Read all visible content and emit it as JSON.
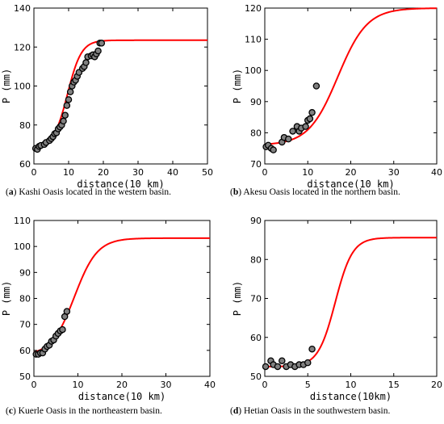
{
  "chart_data": [
    {
      "type": "scatter",
      "panel_letter": "a",
      "caption": "Kashi Oasis located in the western basin.",
      "xlabel": "distance(10 km)",
      "ylabel": "P (mm)",
      "xlim": [
        0,
        50
      ],
      "ylim": [
        60,
        140
      ],
      "xticks": [
        0,
        10,
        20,
        30,
        40,
        50
      ],
      "yticks": [
        60,
        80,
        100,
        120,
        140
      ],
      "curve": {
        "type": "logistic",
        "lower": 68.5,
        "upper": 123.5,
        "midpoint": 9.7,
        "scale": 2.0,
        "color": "#ff0000"
      },
      "points": {
        "x": [
          0.5,
          1.0,
          1.5,
          2.0,
          3.0,
          3.5,
          4.5,
          5.0,
          5.5,
          6.0,
          6.5,
          7.0,
          7.5,
          8.0,
          8.5,
          9.0,
          9.5,
          10.0,
          10.5,
          11.0,
          11.5,
          12.0,
          12.5,
          13.0,
          14.0,
          14.5,
          15.0,
          15.5,
          16.5,
          17.0,
          17.5,
          18.0,
          18.5,
          19.0,
          19.5
        ],
        "y": [
          68,
          67.5,
          69,
          69.5,
          70,
          71,
          72,
          73,
          74,
          75.5,
          76,
          78,
          79,
          80,
          82,
          85,
          90,
          93,
          97,
          100,
          102,
          103,
          105,
          107,
          109,
          110,
          112,
          115,
          115.5,
          116,
          115,
          116.5,
          118,
          122,
          122
        ],
        "fill": "#808080",
        "stroke": "#000000"
      }
    },
    {
      "type": "scatter",
      "panel_letter": "b",
      "caption": "Akesu Oasis located in the northern basin.",
      "xlabel": "distance(10 km)",
      "ylabel": "P (mm)",
      "xlim": [
        0,
        40
      ],
      "ylim": [
        70,
        120
      ],
      "xticks": [
        0,
        10,
        20,
        30,
        40
      ],
      "yticks": [
        70,
        80,
        90,
        100,
        110,
        120
      ],
      "curve": {
        "type": "logistic",
        "lower": 76,
        "upper": 120,
        "midpoint": 17,
        "scale": 3.4,
        "color": "#ff0000"
      },
      "points": {
        "x": [
          0.3,
          0.8,
          1.5,
          2.0,
          4.0,
          4.5,
          5.5,
          6.5,
          7.5,
          8.0,
          8.5,
          9.5,
          10.0,
          10.5,
          11.0,
          12.0
        ],
        "y": [
          75.5,
          76,
          75,
          74.5,
          77,
          78.5,
          78,
          80.5,
          82,
          80.5,
          81.5,
          82,
          84,
          84.5,
          86.5,
          95
        ],
        "fill": "#808080",
        "stroke": "#000000"
      }
    },
    {
      "type": "scatter",
      "panel_letter": "c",
      "caption": "Kuerle Oasis in the northeastern basin.",
      "xlabel": "distance(10 km)",
      "ylabel": "P (mm)",
      "xlim": [
        0,
        40
      ],
      "ylim": [
        50,
        110
      ],
      "xticks": [
        0,
        10,
        20,
        30,
        40
      ],
      "yticks": [
        50,
        60,
        70,
        80,
        90,
        100,
        110
      ],
      "curve": {
        "type": "logistic",
        "lower": 58,
        "upper": 103.2,
        "midpoint": 9.2,
        "scale": 2.6,
        "color": "#ff0000"
      },
      "points": {
        "x": [
          0.5,
          1.0,
          1.5,
          2.0,
          2.5,
          3.0,
          3.5,
          4.0,
          4.5,
          5.0,
          5.5,
          6.0,
          6.5,
          7.0,
          7.5
        ],
        "y": [
          58.5,
          58.5,
          59,
          59,
          60.5,
          61.5,
          62,
          63.5,
          64,
          65.5,
          66.5,
          67.5,
          68,
          73,
          75
        ],
        "fill": "#808080",
        "stroke": "#000000"
      }
    },
    {
      "type": "scatter",
      "panel_letter": "d",
      "caption": "Hetian Oasis in the southwestern basin.",
      "xlabel": "distance(10km)",
      "ylabel": "P (mm)",
      "xlim": [
        0,
        20
      ],
      "ylim": [
        50,
        90
      ],
      "xticks": [
        0,
        5,
        10,
        15,
        20
      ],
      "yticks": [
        50,
        60,
        70,
        80,
        90
      ],
      "curve": {
        "type": "logistic",
        "lower": 52.5,
        "upper": 85.6,
        "midpoint": 8.2,
        "scale": 1.0,
        "color": "#ff0000"
      },
      "points": {
        "x": [
          0.1,
          0.7,
          1.0,
          1.5,
          2.0,
          2.5,
          3.0,
          3.5,
          4.0,
          4.5,
          5.0,
          5.5
        ],
        "y": [
          52.5,
          54,
          53,
          52.5,
          54,
          52.5,
          53,
          52.5,
          53,
          53,
          53.5,
          57
        ],
        "fill": "#808080",
        "stroke": "#000000"
      }
    }
  ]
}
